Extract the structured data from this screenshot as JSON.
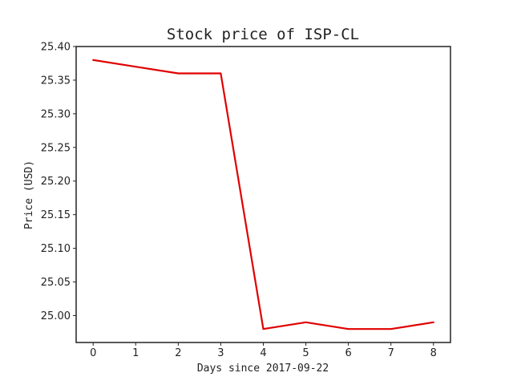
{
  "chart_data": {
    "type": "line",
    "title": "Stock price of ISP-CL",
    "xlabel": "Days since 2017-09-22",
    "ylabel": "Price (USD)",
    "x": [
      0,
      1,
      2,
      3,
      4,
      5,
      6,
      7,
      8
    ],
    "xticks": [
      "0",
      "1",
      "2",
      "3",
      "4",
      "5",
      "6",
      "7",
      "8"
    ],
    "yticks": [
      "25.00",
      "25.05",
      "25.10",
      "25.15",
      "25.20",
      "25.25",
      "25.30",
      "25.35",
      "25.40"
    ],
    "xlim": [
      -0.4,
      8.4
    ],
    "ylim": [
      24.96,
      25.4
    ],
    "series": [
      {
        "values": [
          25.38,
          25.37,
          25.36,
          25.36,
          24.98,
          24.99,
          24.98,
          24.98,
          24.99
        ],
        "color": "#e00000"
      }
    ],
    "grid": false,
    "legend": "none"
  }
}
